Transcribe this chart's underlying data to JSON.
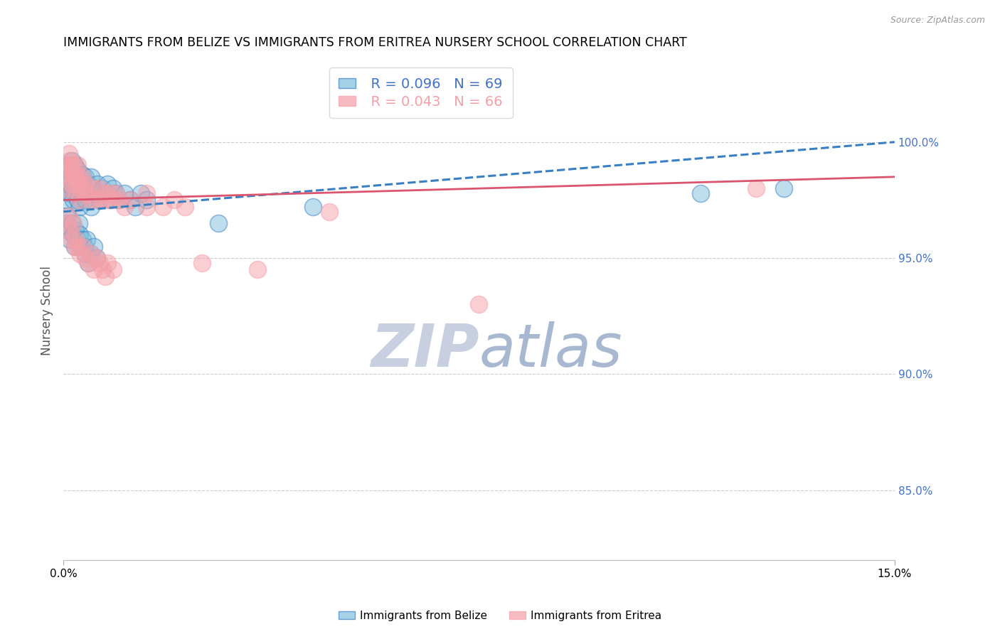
{
  "title": "IMMIGRANTS FROM BELIZE VS IMMIGRANTS FROM ERITREA NURSERY SCHOOL CORRELATION CHART",
  "source": "Source: ZipAtlas.com",
  "ylabel": "Nursery School",
  "y_ticks": [
    85.0,
    90.0,
    95.0,
    100.0
  ],
  "x_range": [
    0.0,
    15.0
  ],
  "y_range": [
    82.0,
    103.5
  ],
  "legend_belize_r": "R = 0.096",
  "legend_belize_n": "N = 69",
  "legend_eritrea_r": "R = 0.043",
  "legend_eritrea_n": "N = 66",
  "legend_label_belize": "Immigrants from Belize",
  "legend_label_eritrea": "Immigrants from Eritrea",
  "color_belize": "#7fbfdf",
  "color_eritrea": "#f4a0a8",
  "color_trendline_belize": "#3a7fc1",
  "color_trendline_eritrea": "#d9546e",
  "color_grid": "#cccccc",
  "color_right_axis": "#4472c4",
  "color_watermark_zip": "#c8cfe0",
  "color_watermark_atlas": "#a8b8d0",
  "belize_x": [
    0.05,
    0.08,
    0.1,
    0.1,
    0.12,
    0.13,
    0.15,
    0.15,
    0.17,
    0.18,
    0.2,
    0.2,
    0.22,
    0.25,
    0.25,
    0.28,
    0.3,
    0.3,
    0.32,
    0.35,
    0.35,
    0.38,
    0.4,
    0.4,
    0.42,
    0.45,
    0.48,
    0.5,
    0.5,
    0.55,
    0.6,
    0.62,
    0.65,
    0.7,
    0.75,
    0.8,
    0.85,
    0.9,
    0.95,
    1.0,
    1.1,
    1.2,
    1.3,
    1.4,
    1.5,
    0.05,
    0.08,
    0.1,
    0.12,
    0.15,
    0.18,
    0.2,
    0.22,
    0.25,
    0.28,
    0.3,
    0.32,
    0.35,
    0.38,
    0.4,
    0.42,
    0.45,
    0.5,
    0.55,
    0.6,
    2.8,
    4.5,
    11.5,
    13.0
  ],
  "belize_y": [
    97.5,
    98.2,
    99.0,
    98.0,
    98.5,
    97.8,
    99.2,
    98.6,
    98.0,
    97.5,
    99.0,
    97.8,
    98.3,
    98.8,
    97.5,
    98.2,
    98.5,
    97.2,
    98.0,
    98.6,
    97.8,
    98.2,
    98.5,
    97.5,
    98.0,
    98.2,
    97.8,
    98.5,
    97.2,
    98.0,
    97.8,
    98.2,
    97.5,
    98.0,
    97.8,
    98.2,
    97.5,
    98.0,
    97.8,
    97.5,
    97.8,
    97.5,
    97.2,
    97.8,
    97.5,
    96.5,
    96.8,
    96.2,
    95.8,
    96.5,
    96.0,
    95.5,
    96.2,
    95.8,
    96.5,
    96.0,
    95.5,
    95.8,
    95.5,
    95.2,
    95.8,
    94.8,
    95.2,
    95.5,
    95.0,
    96.5,
    97.2,
    97.8,
    98.0
  ],
  "eritrea_x": [
    0.05,
    0.08,
    0.1,
    0.1,
    0.12,
    0.13,
    0.15,
    0.15,
    0.17,
    0.18,
    0.2,
    0.2,
    0.22,
    0.25,
    0.25,
    0.28,
    0.3,
    0.3,
    0.32,
    0.35,
    0.38,
    0.4,
    0.45,
    0.5,
    0.55,
    0.6,
    0.65,
    0.7,
    0.75,
    0.8,
    0.85,
    0.9,
    0.95,
    1.0,
    1.1,
    1.2,
    1.5,
    1.8,
    2.0,
    2.2,
    0.08,
    0.1,
    0.12,
    0.15,
    0.18,
    0.2,
    0.22,
    0.25,
    0.3,
    0.35,
    0.4,
    0.45,
    0.5,
    0.55,
    0.6,
    0.65,
    0.7,
    0.75,
    0.8,
    0.9,
    1.5,
    2.5,
    3.5,
    4.8,
    7.5,
    12.5
  ],
  "eritrea_y": [
    98.0,
    99.0,
    99.5,
    98.5,
    99.2,
    98.8,
    99.0,
    98.2,
    98.5,
    99.0,
    98.5,
    97.8,
    98.5,
    99.0,
    98.2,
    98.5,
    98.0,
    97.5,
    98.2,
    98.5,
    97.8,
    98.2,
    97.8,
    97.5,
    98.0,
    97.5,
    98.0,
    97.5,
    97.8,
    97.5,
    97.8,
    97.5,
    97.8,
    97.5,
    97.2,
    97.5,
    97.8,
    97.2,
    97.5,
    97.2,
    96.5,
    96.8,
    96.2,
    95.8,
    96.5,
    95.5,
    95.8,
    95.5,
    95.2,
    95.5,
    95.0,
    94.8,
    95.2,
    94.5,
    95.0,
    94.8,
    94.5,
    94.2,
    94.8,
    94.5,
    97.2,
    94.8,
    94.5,
    97.0,
    93.0,
    98.0
  ]
}
